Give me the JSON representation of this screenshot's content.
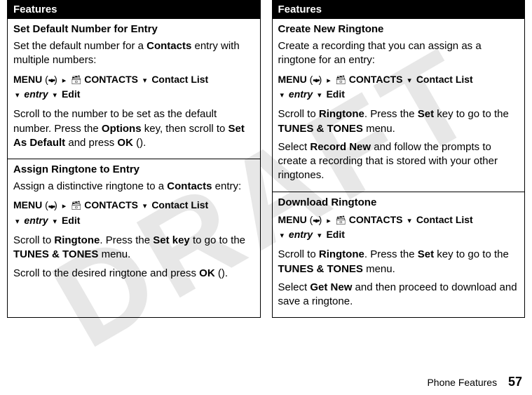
{
  "watermark": "DRAFT",
  "left": {
    "header": "Features",
    "sections": [
      {
        "title": "Set Default Number for Entry",
        "p1_a": "Set the default number for a ",
        "p1_b": "Contacts",
        "p1_c": " entry with multiple numbers:",
        "nav_menu": "MENU",
        "nav_contacts": "CONTACTS",
        "nav_clist": "Contact List",
        "nav_entry": "entry",
        "nav_edit": "Edit",
        "p2_a": "Scroll to the number to be set as the default number. Press the ",
        "p2_b": "Options",
        "p2_c": " key, then scroll to ",
        "p2_d": "Set As Default",
        "p2_e": " and press ",
        "p2_f": "OK",
        "p2_g": " ("
      },
      {
        "title": "Assign Ringtone to Entry",
        "p1_a": "Assign a distinctive ringtone to a ",
        "p1_b": "Contacts",
        "p1_c": " entry:",
        "nav_menu": "MENU",
        "nav_contacts": "CONTACTS",
        "nav_clist": "Contact List",
        "nav_entry": "entry",
        "nav_edit": "Edit",
        "p2_a": "Scroll to ",
        "p2_b": "Ringtone",
        "p2_c": ". Press the ",
        "p2_d": "Set key",
        "p2_e": " to go to the ",
        "p2_f": "TUNES & TONES",
        "p2_g": " menu.",
        "p3_a": "Scroll to the desired ringtone and press ",
        "p3_b": "OK",
        "p3_c": " ("
      }
    ]
  },
  "right": {
    "header": "Features",
    "sections": [
      {
        "title": "Create New Ringtone",
        "p1_a": "Create a recording that you can assign as a ringtone for an entry:",
        "nav_menu": "MENU",
        "nav_contacts": "CONTACTS",
        "nav_clist": "Contact List",
        "nav_entry": "entry",
        "nav_edit": "Edit",
        "p2_a": "Scroll to ",
        "p2_b": "Ringtone",
        "p2_c": ". Press the ",
        "p2_d": "Set",
        "p2_e": " key to go to the ",
        "p2_f": "TUNES & TONES",
        "p2_g": " menu.",
        "p3_a": "Select ",
        "p3_b": "Record New",
        "p3_c": " and follow the prompts to create a recording that is stored with your other ringtones."
      },
      {
        "title": "Download Ringtone",
        "nav_menu": "MENU",
        "nav_contacts": "CONTACTS",
        "nav_clist": "Contact List",
        "nav_entry": "entry",
        "nav_edit": "Edit",
        "p2_a": "Scroll to ",
        "p2_b": "Ringtone",
        "p2_c": ". Press the ",
        "p2_d": "Set",
        "p2_e": " key to go to the ",
        "p2_f": "TUNES & TONES",
        "p2_g": " menu.",
        "p3_a": "Select ",
        "p3_b": "Get New",
        "p3_c": " and then proceed to download and save a ringtone."
      }
    ]
  },
  "footer": {
    "label": "Phone Features",
    "page": "57"
  }
}
